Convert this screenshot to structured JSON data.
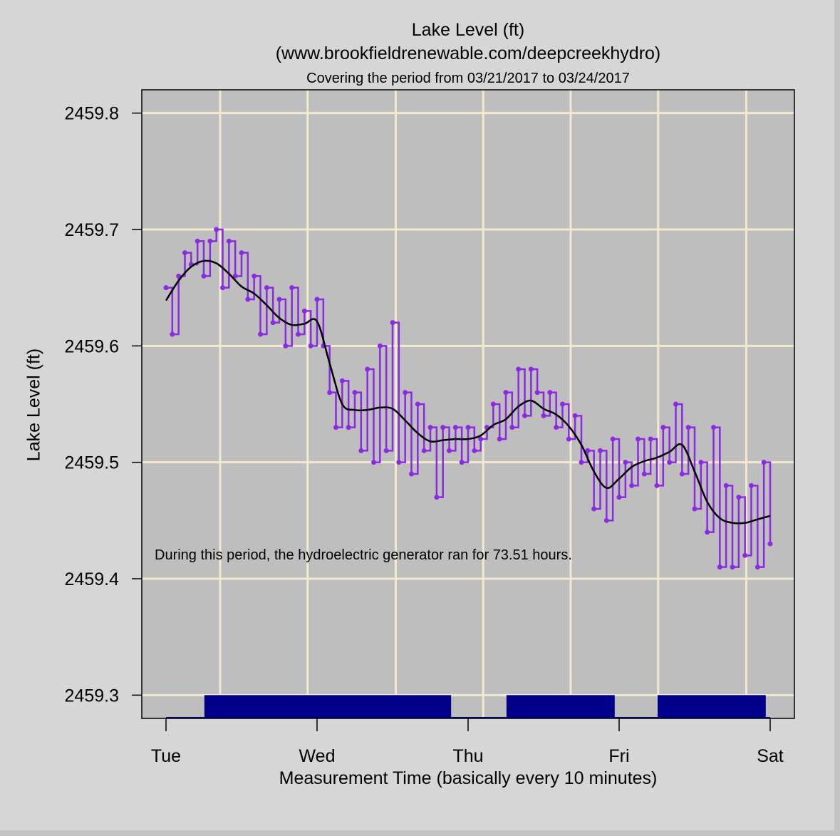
{
  "chart_data": {
    "type": "line",
    "title": "Lake Level (ft)",
    "subtitle": "(www.brookfieldrenewable.com/deepcreekhydro)",
    "period_text": "Covering the period from 03/21/2017 to 03/24/2017",
    "ylabel": "Lake Level (ft)",
    "xlabel": "Measurement Time (basically every 10 minutes)",
    "annotation": "During this period, the hydroelectric generator ran for 73.51 hours.",
    "x_unit": "hours since Tue 00:00",
    "xlim": [
      -3.85,
      99.85
    ],
    "ylim": [
      2459.28,
      2459.82
    ],
    "x_ticks": [
      {
        "label": "Tue",
        "value": 0
      },
      {
        "label": "Wed",
        "value": 24
      },
      {
        "label": "Thu",
        "value": 48
      },
      {
        "label": "Fri",
        "value": 72
      },
      {
        "label": "Sat",
        "value": 96
      }
    ],
    "y_ticks": [
      {
        "label": "2459.3",
        "value": 2459.3
      },
      {
        "label": "2459.4",
        "value": 2459.4
      },
      {
        "label": "2459.5",
        "value": 2459.5
      },
      {
        "label": "2459.6",
        "value": 2459.6
      },
      {
        "label": "2459.7",
        "value": 2459.7
      },
      {
        "label": "2459.8",
        "value": 2459.8
      }
    ],
    "x_grid": [
      8.6,
      22.5,
      36.5,
      50.4,
      64.3,
      78.2,
      92.2
    ],
    "grid": true,
    "colors": {
      "outer_bg": "#d6d6d6",
      "plot_bg": "#bebebe",
      "grid": "#f2ead0",
      "raw": "#8a2be2",
      "smooth": "#000000",
      "generator": "#00008b"
    },
    "raw_series": {
      "x_step_hours": 1,
      "values": [
        2459.65,
        2459.61,
        2459.66,
        2459.68,
        2459.67,
        2459.69,
        2459.66,
        2459.69,
        2459.7,
        2459.65,
        2459.69,
        2459.66,
        2459.68,
        2459.64,
        2459.66,
        2459.61,
        2459.65,
        2459.62,
        2459.64,
        2459.6,
        2459.65,
        2459.61,
        2459.63,
        2459.6,
        2459.64,
        2459.6,
        2459.56,
        2459.53,
        2459.57,
        2459.53,
        2459.56,
        2459.51,
        2459.58,
        2459.5,
        2459.6,
        2459.51,
        2459.62,
        2459.5,
        2459.56,
        2459.49,
        2459.55,
        2459.51,
        2459.53,
        2459.47,
        2459.53,
        2459.51,
        2459.53,
        2459.5,
        2459.53,
        2459.51,
        2459.52,
        2459.53,
        2459.55,
        2459.52,
        2459.56,
        2459.53,
        2459.58,
        2459.54,
        2459.58,
        2459.56,
        2459.54,
        2459.56,
        2459.53,
        2459.55,
        2459.52,
        2459.54,
        2459.5,
        2459.51,
        2459.46,
        2459.51,
        2459.45,
        2459.52,
        2459.47,
        2459.5,
        2459.48,
        2459.52,
        2459.49,
        2459.52,
        2459.48,
        2459.53,
        2459.5,
        2459.55,
        2459.49,
        2459.53,
        2459.46,
        2459.5,
        2459.44,
        2459.53,
        2459.41,
        2459.48,
        2459.41,
        2459.47,
        2459.42,
        2459.48,
        2459.41,
        2459.5,
        2459.43
      ]
    },
    "smooth_series": {
      "x_step_hours": 2,
      "values": [
        2459.639,
        2459.656,
        2459.668,
        2459.673,
        2459.671,
        2459.662,
        2459.651,
        2459.645,
        2459.635,
        2459.624,
        2459.618,
        2459.619,
        2459.621,
        2459.585,
        2459.55,
        2459.545,
        2459.545,
        2459.547,
        2459.546,
        2459.536,
        2459.525,
        2459.518,
        2459.519,
        2459.52,
        2459.52,
        2459.523,
        2459.532,
        2459.537,
        2459.548,
        2459.553,
        2459.546,
        2459.541,
        2459.531,
        2459.515,
        2459.492,
        2459.478,
        2459.486,
        2459.496,
        2459.501,
        2459.504,
        2459.509,
        2459.515,
        2459.492,
        2459.466,
        2459.452,
        2459.448,
        2459.448,
        2459.451,
        2459.454
      ]
    },
    "generator_on_periods_hours": [
      [
        6.1,
        45.3
      ],
      [
        54.1,
        71.3
      ],
      [
        78.1,
        95.3
      ]
    ]
  }
}
